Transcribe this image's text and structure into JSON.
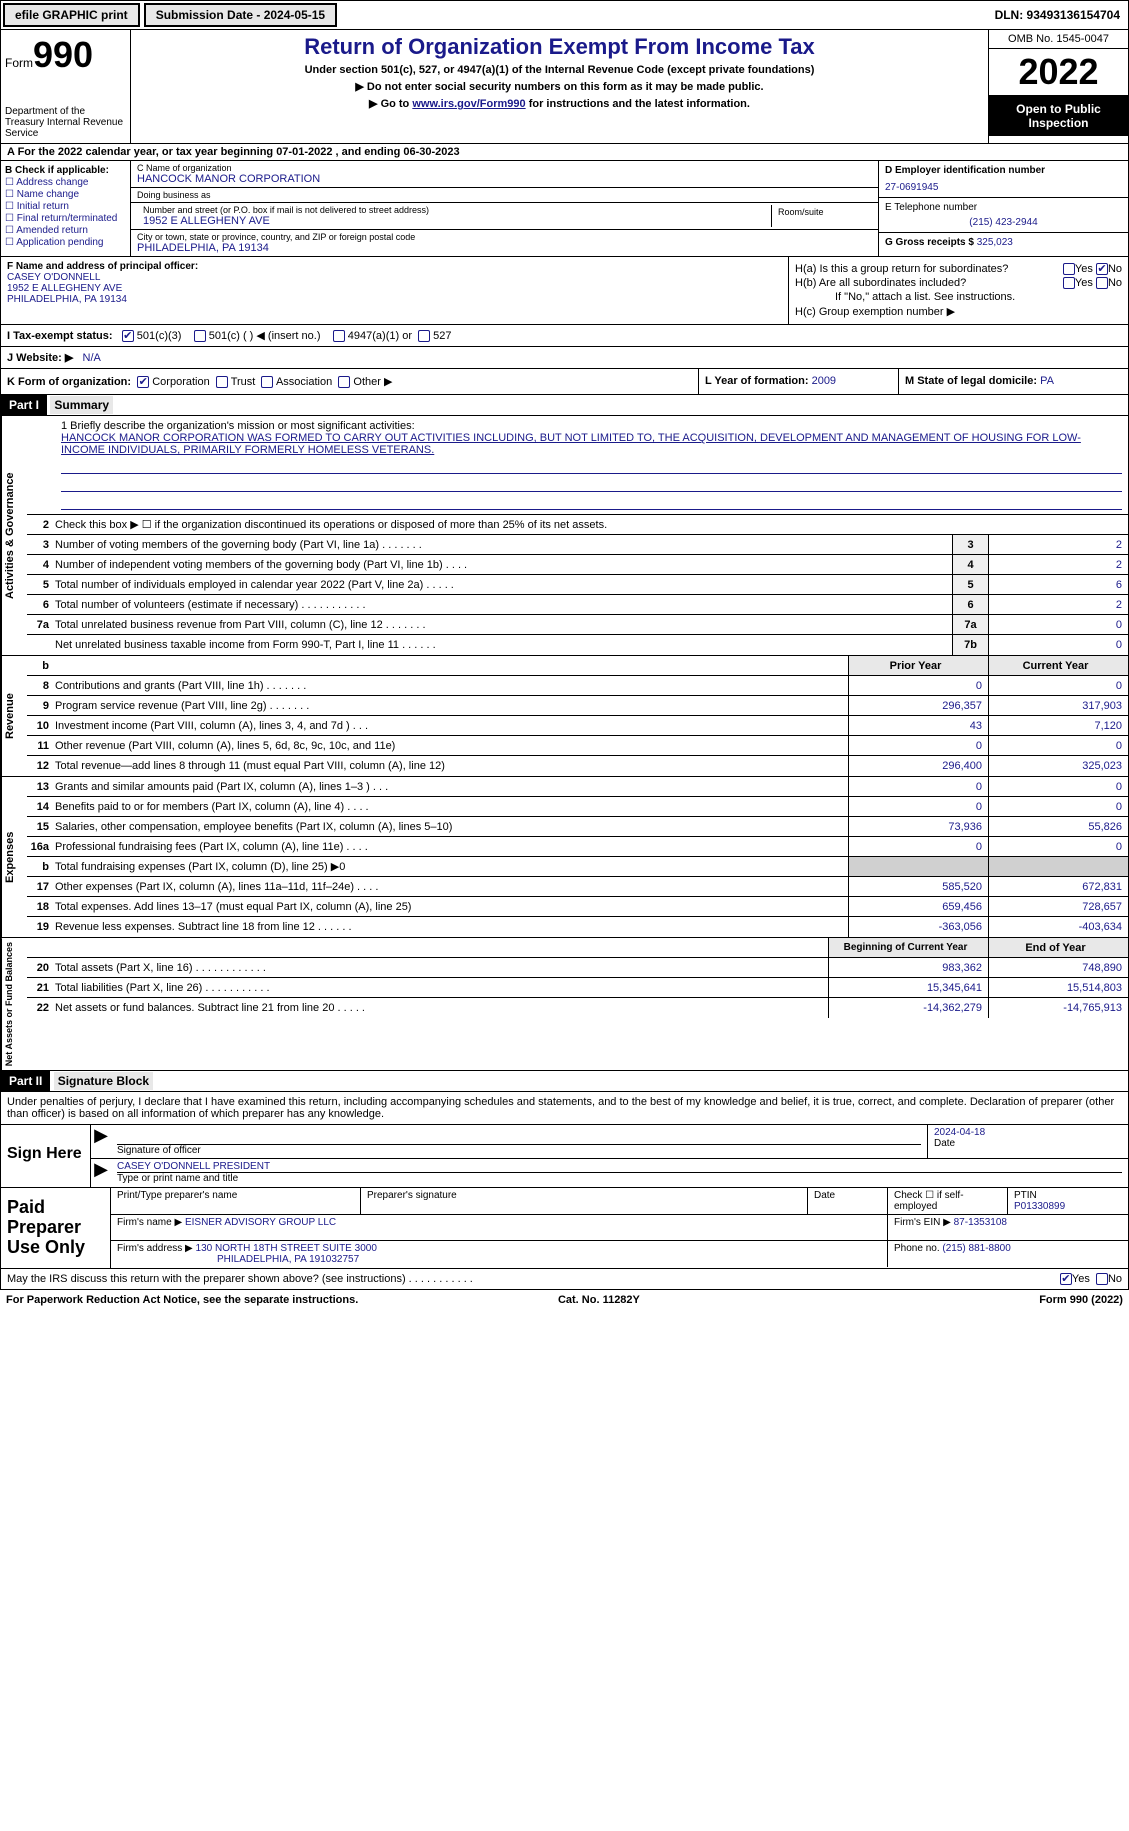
{
  "topbar": {
    "efile": "efile GRAPHIC print",
    "submission": "Submission Date - 2024-05-15",
    "dln": "DLN: 93493136154704"
  },
  "header": {
    "form_label": "Form",
    "form_num": "990",
    "dept": "Department of the Treasury Internal Revenue Service",
    "title": "Return of Organization Exempt From Income Tax",
    "sub1": "Under section 501(c), 527, or 4947(a)(1) of the Internal Revenue Code (except private foundations)",
    "sub2": "▶ Do not enter social security numbers on this form as it may be made public.",
    "sub3_pre": "▶ Go to ",
    "sub3_link": "www.irs.gov/Form990",
    "sub3_post": " for instructions and the latest information.",
    "omb": "OMB No. 1545-0047",
    "year": "2022",
    "open": "Open to Public Inspection"
  },
  "rowA": "A For the 2022 calendar year, or tax year beginning 07-01-2022    , and ending 06-30-2023",
  "colB": {
    "title": "B Check if applicable:",
    "items": [
      "Address change",
      "Name change",
      "Initial return",
      "Final return/terminated",
      "Amended return",
      "Application pending"
    ]
  },
  "colC": {
    "name_lbl": "C Name of organization",
    "name": "HANCOCK MANOR CORPORATION",
    "dba_lbl": "Doing business as",
    "dba": "",
    "street_lbl": "Number and street (or P.O. box if mail is not delivered to street address)",
    "room_lbl": "Room/suite",
    "street": "1952 E ALLEGHENY AVE",
    "city_lbl": "City or town, state or province, country, and ZIP or foreign postal code",
    "city": "PHILADELPHIA, PA  19134"
  },
  "colD": {
    "ein_lbl": "D Employer identification number",
    "ein": "27-0691945",
    "tel_lbl": "E Telephone number",
    "tel": "(215) 423-2944",
    "gross_lbl": "G Gross receipts $",
    "gross": "325,023"
  },
  "colF": {
    "lbl": "F Name and address of principal officer:",
    "name": "CASEY O'DONNELL",
    "addr1": "1952 E ALLEGHENY AVE",
    "addr2": "PHILADELPHIA, PA  19134"
  },
  "colH": {
    "a": "H(a)  Is this a group return for subordinates?",
    "b": "H(b)  Are all subordinates included?",
    "b2": "If \"No,\" attach a list. See instructions.",
    "c": "H(c)  Group exemption number ▶"
  },
  "rowI": {
    "lbl": "I    Tax-exempt status:",
    "o1": "501(c)(3)",
    "o2": "501(c) (  ) ◀ (insert no.)",
    "o3": "4947(a)(1) or",
    "o4": "527"
  },
  "rowJ": {
    "lbl": "J   Website: ▶",
    "val": "N/A"
  },
  "rowK": {
    "k1": "K Form of organization:",
    "corp": "Corporation",
    "trust": "Trust",
    "assoc": "Association",
    "other": "Other ▶",
    "k2_lbl": "L Year of formation:",
    "k2_val": "2009",
    "k3_lbl": "M State of legal domicile:",
    "k3_val": "PA"
  },
  "part1": {
    "hdr": "Part I",
    "title": "Summary"
  },
  "mission": {
    "lbl": "1   Briefly describe the organization's mission or most significant activities:",
    "text": "HANCOCK MANOR CORPORATION WAS FORMED TO CARRY OUT ACTIVITIES INCLUDING, BUT NOT LIMITED TO, THE ACQUISITION, DEVELOPMENT AND MANAGEMENT OF HOUSING FOR LOW-INCOME INDIVIDUALS, PRIMARILY FORMERLY HOMELESS VETERANS."
  },
  "governance": {
    "l2": "Check this box ▶ ☐ if the organization discontinued its operations or disposed of more than 25% of its net assets.",
    "lines": [
      {
        "n": "3",
        "d": "Number of voting members of the governing body (Part VI, line 1a)   .    .    .    .    .    .    .",
        "box": "3",
        "v": "2"
      },
      {
        "n": "4",
        "d": "Number of independent voting members of the governing body (Part VI, line 1b)   .    .    .    .",
        "box": "4",
        "v": "2"
      },
      {
        "n": "5",
        "d": "Total number of individuals employed in calendar year 2022 (Part V, line 2a)   .    .    .    .    .",
        "box": "5",
        "v": "6"
      },
      {
        "n": "6",
        "d": "Total number of volunteers (estimate if necessary)    .    .    .    .    .    .    .    .    .    .    .",
        "box": "6",
        "v": "2"
      },
      {
        "n": "7a",
        "d": "Total unrelated business revenue from Part VIII, column (C), line 12   .    .    .    .    .    .    .",
        "box": "7a",
        "v": "0"
      },
      {
        "n": "",
        "d": "Net unrelated business taxable income from Form 990-T, Part I, line 11   .    .    .    .    .    .",
        "box": "7b",
        "v": "0"
      }
    ]
  },
  "revenue": {
    "hdr": {
      "py": "Prior Year",
      "cy": "Current Year"
    },
    "lines": [
      {
        "n": "8",
        "d": "Contributions and grants (Part VIII, line 1h)    .    .    .    .    .    .    .",
        "py": "0",
        "cy": "0"
      },
      {
        "n": "9",
        "d": "Program service revenue (Part VIII, line 2g)    .    .    .    .    .    .    .",
        "py": "296,357",
        "cy": "317,903"
      },
      {
        "n": "10",
        "d": "Investment income (Part VIII, column (A), lines 3, 4, and 7d )    .    .    .",
        "py": "43",
        "cy": "7,120"
      },
      {
        "n": "11",
        "d": "Other revenue (Part VIII, column (A), lines 5, 6d, 8c, 9c, 10c, and 11e)",
        "py": "0",
        "cy": "0"
      },
      {
        "n": "12",
        "d": "Total revenue—add lines 8 through 11 (must equal Part VIII, column (A), line 12)",
        "py": "296,400",
        "cy": "325,023"
      }
    ]
  },
  "expenses": {
    "lines": [
      {
        "n": "13",
        "d": "Grants and similar amounts paid (Part IX, column (A), lines 1–3 )   .    .    .",
        "py": "0",
        "cy": "0"
      },
      {
        "n": "14",
        "d": "Benefits paid to or for members (Part IX, column (A), line 4)   .    .    .    .",
        "py": "0",
        "cy": "0"
      },
      {
        "n": "15",
        "d": "Salaries, other compensation, employee benefits (Part IX, column (A), lines 5–10)",
        "py": "73,936",
        "cy": "55,826"
      },
      {
        "n": "16a",
        "d": "Professional fundraising fees (Part IX, column (A), line 11e)   .    .    .    .",
        "py": "0",
        "cy": "0"
      },
      {
        "n": "b",
        "d": "Total fundraising expenses (Part IX, column (D), line 25) ▶0",
        "py": "",
        "cy": "",
        "shade": true
      },
      {
        "n": "17",
        "d": "Other expenses (Part IX, column (A), lines 11a–11d, 11f–24e)   .    .    .    .",
        "py": "585,520",
        "cy": "672,831"
      },
      {
        "n": "18",
        "d": "Total expenses. Add lines 13–17 (must equal Part IX, column (A), line 25)",
        "py": "659,456",
        "cy": "728,657"
      },
      {
        "n": "19",
        "d": "Revenue less expenses. Subtract line 18 from line 12   .    .    .    .    .    .",
        "py": "-363,056",
        "cy": "-403,634"
      }
    ]
  },
  "netassets": {
    "hdr": {
      "py": "Beginning of Current Year",
      "cy": "End of Year"
    },
    "lines": [
      {
        "n": "20",
        "d": "Total assets (Part X, line 16)   .    .    .    .    .    .    .    .    .    .    .    .",
        "py": "983,362",
        "cy": "748,890"
      },
      {
        "n": "21",
        "d": "Total liabilities (Part X, line 26)   .    .    .    .    .    .    .    .    .    .    .",
        "py": "15,345,641",
        "cy": "15,514,803"
      },
      {
        "n": "22",
        "d": "Net assets or fund balances. Subtract line 21 from line 20   .    .    .    .    .",
        "py": "-14,362,279",
        "cy": "-14,765,913"
      }
    ]
  },
  "vtabs": {
    "gov": "Activities & Governance",
    "rev": "Revenue",
    "exp": "Expenses",
    "net": "Net Assets or Fund Balances"
  },
  "part2": {
    "hdr": "Part II",
    "title": "Signature Block"
  },
  "sig": {
    "intro": "Under penalties of perjury, I declare that I have examined this return, including accompanying schedules and statements, and to the best of my knowledge and belief, it is true, correct, and complete. Declaration of preparer (other than officer) is based on all information of which preparer has any knowledge.",
    "sign_lbl": "Sign Here",
    "sig_officer": "Signature of officer",
    "date": "2024-04-18",
    "date_lbl": "Date",
    "name": "CASEY O'DONNELL  PRESIDENT",
    "name_lbl": "Type or print name and title"
  },
  "paid": {
    "lbl": "Paid Preparer Use Only",
    "r1": {
      "c1": "Print/Type preparer's name",
      "c2": "Preparer's signature",
      "c3": "Date",
      "c4": "Check ☐ if self-employed",
      "c5_lbl": "PTIN",
      "c5": "P01330899"
    },
    "r2": {
      "c1": "Firm's name    ▶",
      "c1v": "EISNER ADVISORY GROUP LLC",
      "c2": "Firm's EIN ▶",
      "c2v": "87-1353108"
    },
    "r3": {
      "c1": "Firm's address ▶",
      "c1v": "130 NORTH 18TH STREET SUITE 3000",
      "c1v2": "PHILADELPHIA, PA  191032757",
      "c2": "Phone no.",
      "c2v": "(215) 881-8800"
    }
  },
  "may": "May the IRS discuss this return with the preparer shown above? (see instructions)   .    .    .    .    .    .    .    .    .    .    .",
  "footer": {
    "l": "For Paperwork Reduction Act Notice, see the separate instructions.",
    "c": "Cat. No. 11282Y",
    "r": "Form 990 (2022)"
  }
}
